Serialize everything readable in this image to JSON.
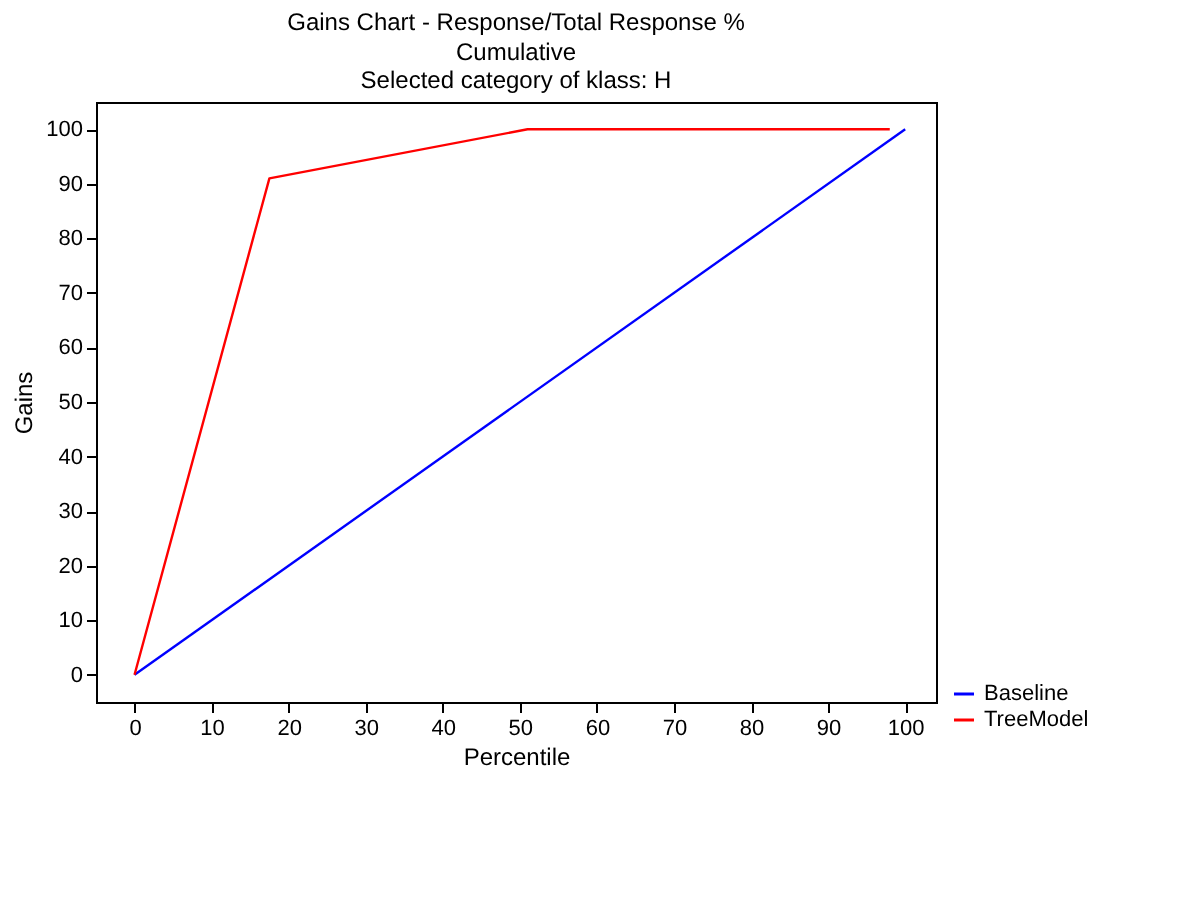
{
  "chart_data": {
    "type": "line",
    "title": "Gains Chart - Response/Total Response %",
    "subtitle": "Cumulative\nSelected category of klass: H",
    "xlabel": "Percentile",
    "ylabel": "Gains",
    "series": [
      {
        "name": "Baseline",
        "color": "#0000ff",
        "x": [
          0,
          100
        ],
        "values": [
          0,
          100
        ]
      },
      {
        "name": "TreeModel",
        "color": "#ff0000",
        "x": [
          0,
          17.5,
          51,
          98
        ],
        "values": [
          0,
          91,
          100,
          100
        ]
      }
    ],
    "xlim": [
      -5,
      104
    ],
    "xticks": [
      0,
      10,
      20,
      30,
      40,
      50,
      60,
      70,
      80,
      90,
      100
    ],
    "ylim": [
      -5,
      105
    ],
    "yticks": [
      0,
      10,
      20,
      30,
      40,
      50,
      60,
      70,
      80,
      90,
      100
    ],
    "grid": false,
    "legend": "bottom right",
    "marker": "none",
    "line_style": "solid"
  }
}
